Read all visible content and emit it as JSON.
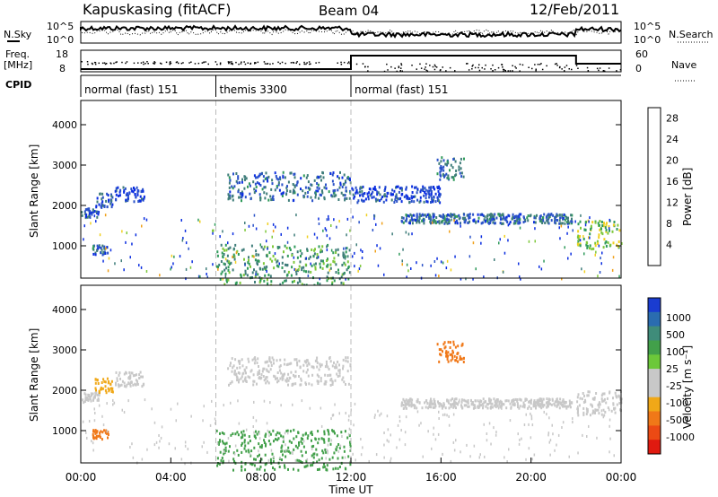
{
  "header": {
    "station": "Kapuskasing (fitACF)",
    "beam": "Beam 04",
    "date": "12/Feb/2011"
  },
  "top_panels": {
    "nsky_label": "N.Sky",
    "nsky_ticks": [
      "10^5",
      "10^0"
    ],
    "nsearch_label": "N.Search",
    "nsearch_ticks": [
      "10^5",
      "10^0"
    ],
    "freq_label_1": "Freq.",
    "freq_label_2": "[MHz]",
    "freq_ticks": [
      "18",
      "8"
    ],
    "nave_label": "Nave",
    "nave_ticks": [
      "60",
      "0"
    ],
    "cpid_label": "CPID",
    "cpid_segments": [
      {
        "label": "normal (fast) 151",
        "start": 0,
        "end": 6
      },
      {
        "label": "themis 3300",
        "start": 6,
        "end": 12
      },
      {
        "label": "normal (fast) 151",
        "start": 12,
        "end": 24
      }
    ]
  },
  "chart_data": [
    {
      "type": "heatmap",
      "name": "power",
      "ylabel": "Slant Range [km]",
      "xlabel": "Time UT",
      "xlim": [
        0,
        24
      ],
      "ylim": [
        200,
        4600
      ],
      "yticks": [
        "1000",
        "2000",
        "3000",
        "4000"
      ],
      "xticks": [
        "00:00",
        "04:00",
        "08:00",
        "12:00",
        "16:00",
        "20:00",
        "00:00"
      ],
      "dashed_boundaries_hours": [
        6,
        12
      ],
      "colorbar": {
        "label": "Power [dB]",
        "ticks": [
          "4",
          "8",
          "12",
          "16",
          "20",
          "24",
          "28"
        ],
        "range": [
          0,
          30
        ],
        "colors": [
          "#0a2de0",
          "#2a52c8",
          "#3f7d7a",
          "#2f9a5a",
          "#7ec83b",
          "#f0d020",
          "#f0a018",
          "#f07818",
          "#ec4a14",
          "#e01a10"
        ]
      },
      "bands": [
        {
          "t0": 0.0,
          "t1": 0.8,
          "r": 1850,
          "w": 120,
          "v": 4
        },
        {
          "t0": 0.6,
          "t1": 1.4,
          "r": 2150,
          "w": 180,
          "v": 5
        },
        {
          "t0": 0.5,
          "t1": 1.2,
          "r": 930,
          "w": 120,
          "v": 6
        },
        {
          "t0": 1.5,
          "t1": 2.8,
          "r": 2300,
          "w": 180,
          "v": 3
        },
        {
          "t0": 6.5,
          "t1": 12.0,
          "r": 2500,
          "w": 350,
          "v": 6
        },
        {
          "t0": 12.0,
          "t1": 16.0,
          "r": 2300,
          "w": 200,
          "v": 3
        },
        {
          "t0": 14.2,
          "t1": 21.8,
          "r": 1700,
          "w": 120,
          "v": 6
        },
        {
          "t0": 15.8,
          "t1": 17.0,
          "r": 2950,
          "w": 280,
          "v": 7
        },
        {
          "t0": 22.0,
          "t1": 24.0,
          "r": 1300,
          "w": 350,
          "v": 13
        },
        {
          "t0": 6.0,
          "t1": 12.0,
          "r": 550,
          "w": 500,
          "v": 10
        }
      ]
    },
    {
      "type": "heatmap",
      "name": "velocity",
      "ylabel": "Slant Range [km]",
      "xlabel": "Time UT",
      "xlim": [
        0,
        24
      ],
      "ylim": [
        200,
        4600
      ],
      "yticks": [
        "1000",
        "2000",
        "3000",
        "4000"
      ],
      "xticks": [
        "00:00",
        "04:00",
        "08:00",
        "12:00",
        "16:00",
        "20:00",
        "00:00"
      ],
      "dashed_boundaries_hours": [
        6,
        12
      ],
      "colorbar": {
        "label": "Velocity [m s⁻¹]",
        "ticks": [
          "1000",
          "500",
          "100",
          "25",
          "-25",
          "-100",
          "-500",
          "-1000"
        ],
        "colors": [
          "#1a3cd0",
          "#2a6cb0",
          "#3f8c7a",
          "#42a04a",
          "#6cc83a",
          "#c8c8c8",
          "#c8c8c8",
          "#f0a818",
          "#f07818",
          "#ec4a14",
          "#e01a10"
        ]
      },
      "bands": [
        {
          "t0": 0.0,
          "t1": 0.8,
          "r": 1850,
          "w": 120,
          "v": 0
        },
        {
          "t0": 0.6,
          "t1": 1.4,
          "r": 2150,
          "w": 180,
          "v": -60
        },
        {
          "t0": 0.5,
          "t1": 1.2,
          "r": 930,
          "w": 120,
          "v": -400
        },
        {
          "t0": 1.5,
          "t1": 2.8,
          "r": 2300,
          "w": 180,
          "v": 0
        },
        {
          "t0": 6.5,
          "t1": 12.0,
          "r": 2500,
          "w": 350,
          "v": 0
        },
        {
          "t0": 14.2,
          "t1": 21.8,
          "r": 1700,
          "w": 120,
          "v": 0
        },
        {
          "t0": 15.8,
          "t1": 17.0,
          "r": 2950,
          "w": 280,
          "v": -200
        },
        {
          "t0": 22.0,
          "t1": 24.0,
          "r": 1700,
          "w": 300,
          "v": 0
        },
        {
          "t0": 6.0,
          "t1": 12.0,
          "r": 550,
          "w": 500,
          "v": 80
        }
      ]
    }
  ]
}
